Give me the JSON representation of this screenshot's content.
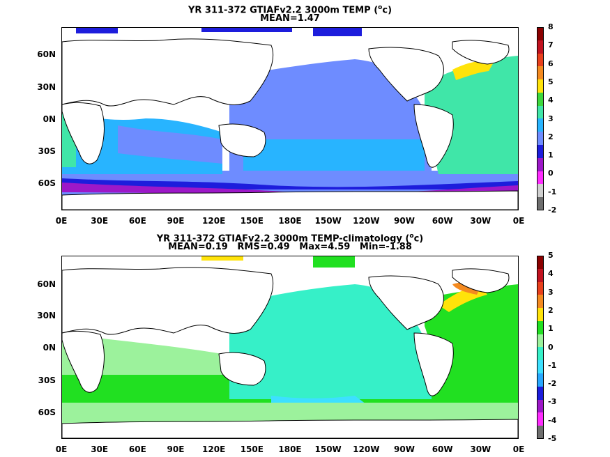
{
  "panels": [
    {
      "title_line1": "YR 311-372 GTIAFv2.2 3000m TEMP (",
      "title_sup": "o",
      "title_unit": "c)",
      "title_line2": "MEAN=1.47",
      "y_ticks": [
        "60N",
        "30N",
        "0N",
        "30S",
        "60S"
      ],
      "x_ticks": [
        "0E",
        "30E",
        "60E",
        "90E",
        "120E",
        "150E",
        "180E",
        "150W",
        "120W",
        "90W",
        "60W",
        "30W",
        "0E"
      ],
      "colorbar": {
        "labels": [
          "8",
          "7",
          "6",
          "5",
          "4",
          "3",
          "2",
          "1",
          "0",
          "-1",
          "-2"
        ],
        "colors": [
          "#8b0000",
          "#c1121f",
          "#e8401c",
          "#f48a20",
          "#ffe30a",
          "#3dd83d",
          "#40e6a8",
          "#28b4ff",
          "#6e8cff",
          "#1d1ddc",
          "#9d18c8",
          "#ff2cff",
          "#d0d0d0",
          "#6e6e6e"
        ]
      }
    },
    {
      "title_line1": "YR 311-372 GTIAFv2.2 3000m TEMP-climatology (",
      "title_sup": "o",
      "title_unit": "c)",
      "title_line2": "MEAN=0.19   RMS=0.49   Max=4.59   Min=-1.88",
      "y_ticks": [
        "60N",
        "30N",
        "0N",
        "30S",
        "60S"
      ],
      "x_ticks": [
        "0E",
        "30E",
        "60E",
        "90E",
        "120E",
        "150E",
        "180E",
        "150W",
        "120W",
        "90W",
        "60W",
        "30W",
        "0E"
      ],
      "colorbar": {
        "labels": [
          "5",
          "4",
          "3",
          "2",
          "1",
          "0",
          "-1",
          "-2",
          "-3",
          "-4",
          "-5"
        ],
        "colors": [
          "#8b0000",
          "#c1121f",
          "#e8401c",
          "#f48a20",
          "#ffe30a",
          "#21e021",
          "#9cf29c",
          "#36f0c8",
          "#3de0ff",
          "#28a8ff",
          "#1d1ddc",
          "#9d18c8",
          "#ff2cff",
          "#6e6e6e"
        ]
      }
    }
  ],
  "chart_data": [
    {
      "type": "heatmap",
      "title": "YR 311-372 GTIAFv2.2 3000m TEMP (oc)",
      "subtitle": "MEAN=1.47",
      "variable": "3000m temperature",
      "unit": "oc",
      "mean": 1.47,
      "x_range": [
        "0E",
        "0E"
      ],
      "y_range": [
        "80S",
        "85N"
      ],
      "color_scale": [
        -2,
        8
      ],
      "colorbar_ticks": [
        8,
        7,
        6,
        5,
        4,
        3,
        2,
        1,
        0,
        -1,
        -2
      ]
    },
    {
      "type": "heatmap",
      "title": "YR 311-372 GTIAFv2.2 3000m TEMP-climatology (oc)",
      "subtitle": "MEAN=0.19   RMS=0.49   Max=4.59   Min=-1.88",
      "variable": "3000m temperature minus climatology",
      "unit": "oc",
      "mean": 0.19,
      "rms": 0.49,
      "max": 4.59,
      "min": -1.88,
      "x_range": [
        "0E",
        "0E"
      ],
      "y_range": [
        "80S",
        "85N"
      ],
      "color_scale": [
        -5,
        5
      ],
      "colorbar_ticks": [
        5,
        4,
        3,
        2,
        1,
        0,
        -1,
        -2,
        -3,
        -4,
        -5
      ]
    }
  ]
}
